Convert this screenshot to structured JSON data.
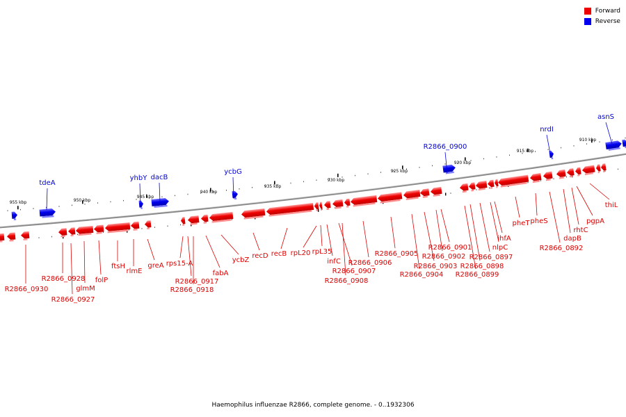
{
  "legend": {
    "forward": {
      "label": "Forward",
      "color": "#ee0000"
    },
    "reverse": {
      "label": "Reverse",
      "color": "#0000ee"
    }
  },
  "caption": "Haemophilus influenzae R2866, complete genome. - 0..1932306",
  "ruler_labels": [
    "955 kbp",
    "950 kbp",
    "945 kbp",
    "940 kbp",
    "935 kbp",
    "930 kbp",
    "925 kbp",
    "920 kbp",
    "915 kbp",
    "910 kbp"
  ],
  "genes": [
    {
      "name": "R2866_0930",
      "strand": "forward"
    },
    {
      "name": "R2866_0928",
      "strand": "forward"
    },
    {
      "name": "R2866_0927",
      "strand": "forward"
    },
    {
      "name": "glmM",
      "strand": "forward"
    },
    {
      "name": "folP",
      "strand": "forward"
    },
    {
      "name": "ftsH",
      "strand": "forward"
    },
    {
      "name": "rlmE",
      "strand": "forward"
    },
    {
      "name": "greA",
      "strand": "forward"
    },
    {
      "name": "rps15-A",
      "strand": "forward"
    },
    {
      "name": "R2866_0917",
      "strand": "forward"
    },
    {
      "name": "R2866_0918",
      "strand": "forward"
    },
    {
      "name": "fabA",
      "strand": "forward"
    },
    {
      "name": "ycbZ",
      "strand": "forward"
    },
    {
      "name": "recD",
      "strand": "forward"
    },
    {
      "name": "recB",
      "strand": "forward"
    },
    {
      "name": "rpL20",
      "strand": "forward"
    },
    {
      "name": "rpL35",
      "strand": "forward"
    },
    {
      "name": "infC",
      "strand": "forward"
    },
    {
      "name": "R2866_0907",
      "strand": "forward"
    },
    {
      "name": "R2866_0908",
      "strand": "forward"
    },
    {
      "name": "R2866_0906",
      "strand": "forward"
    },
    {
      "name": "R2866_0905",
      "strand": "forward"
    },
    {
      "name": "R2866_0904",
      "strand": "forward"
    },
    {
      "name": "R2866_0903",
      "strand": "forward"
    },
    {
      "name": "R2866_0902",
      "strand": "forward"
    },
    {
      "name": "R2866_0901",
      "strand": "forward"
    },
    {
      "name": "R2866_0898",
      "strand": "forward"
    },
    {
      "name": "R2866_0899",
      "strand": "forward"
    },
    {
      "name": "R2866_0897",
      "strand": "forward"
    },
    {
      "name": "nlpC",
      "strand": "forward"
    },
    {
      "name": "ihfA",
      "strand": "forward"
    },
    {
      "name": "pheT",
      "strand": "forward"
    },
    {
      "name": "pheS",
      "strand": "forward"
    },
    {
      "name": "R2866_0892",
      "strand": "forward"
    },
    {
      "name": "dapB",
      "strand": "forward"
    },
    {
      "name": "rhtC",
      "strand": "forward"
    },
    {
      "name": "pgpA",
      "strand": "forward"
    },
    {
      "name": "thiL",
      "strand": "forward"
    },
    {
      "name": "tdeA",
      "strand": "reverse"
    },
    {
      "name": "yhbY",
      "strand": "reverse"
    },
    {
      "name": "dacB",
      "strand": "reverse"
    },
    {
      "name": "ycbG",
      "strand": "reverse"
    },
    {
      "name": "R2866_0900",
      "strand": "reverse"
    },
    {
      "name": "nrdI",
      "strand": "reverse"
    },
    {
      "name": "asnS",
      "strand": "reverse"
    }
  ]
}
